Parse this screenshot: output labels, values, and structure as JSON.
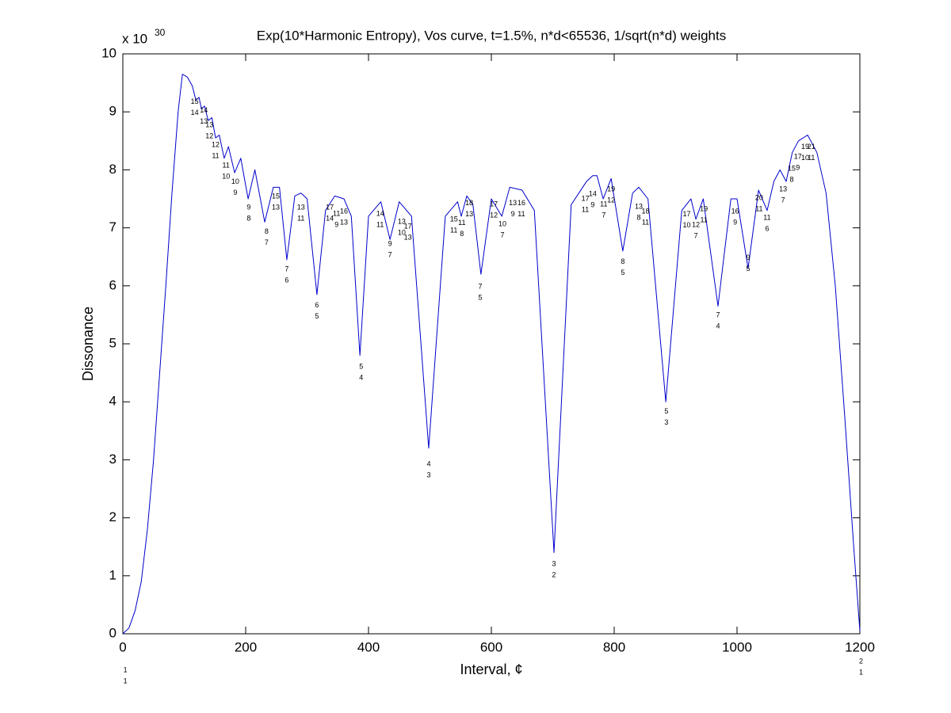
{
  "chart_data": {
    "type": "line",
    "title": "Exp(10*Harmonic Entropy), Vos curve, t=1.5%, n*d<65536, 1/sqrt(n*d) weights",
    "x_label": "Interval, ¢",
    "y_label": "Dissonance",
    "y_multiplier": {
      "base": "x 10",
      "exponent": "30"
    },
    "color": "#0000cc",
    "xlim": [
      0,
      1200
    ],
    "ylim": [
      0,
      10
    ],
    "xticks": [
      0,
      200,
      400,
      600,
      800,
      1000,
      1200
    ],
    "yticks": [
      0,
      1,
      2,
      3,
      4,
      5,
      6,
      7,
      8,
      9,
      10
    ],
    "grid": false,
    "x": [
      0,
      10,
      20,
      30,
      40,
      50,
      60,
      70,
      80,
      90,
      97,
      105,
      113,
      119,
      124,
      128,
      133,
      139,
      145,
      151,
      157,
      165,
      172,
      182,
      192,
      204,
      215,
      231,
      245,
      255,
      267,
      280,
      290,
      300,
      316,
      330,
      345,
      360,
      372,
      386,
      400,
      420,
      435,
      450,
      470,
      498,
      525,
      545,
      551,
      560,
      570,
      583,
      600,
      617,
      630,
      650,
      670,
      702,
      730,
      755,
      765,
      772,
      782,
      795,
      814,
      830,
      840,
      855,
      884,
      910,
      925,
      933,
      945,
      969,
      990,
      1000,
      1018,
      1035,
      1049,
      1060,
      1070,
      1080,
      1090,
      1100,
      1115,
      1130,
      1145,
      1160,
      1175,
      1190,
      1200
    ],
    "values": [
      0,
      0.1,
      0.4,
      0.9,
      1.8,
      3.0,
      4.5,
      6.0,
      7.6,
      9.0,
      9.65,
      9.6,
      9.45,
      9.2,
      9.25,
      9.05,
      9.1,
      8.85,
      8.9,
      8.55,
      8.6,
      8.2,
      8.4,
      7.95,
      8.2,
      7.5,
      8.0,
      7.1,
      7.7,
      7.7,
      6.45,
      7.55,
      7.6,
      7.5,
      5.85,
      7.3,
      7.55,
      7.5,
      7.2,
      4.8,
      7.2,
      7.45,
      6.8,
      7.45,
      7.2,
      3.2,
      7.2,
      7.45,
      7.2,
      7.55,
      7.4,
      6.2,
      7.5,
      7.2,
      7.7,
      7.65,
      7.3,
      1.4,
      7.4,
      7.8,
      7.9,
      7.9,
      7.5,
      7.85,
      6.6,
      7.6,
      7.7,
      7.5,
      4.0,
      7.3,
      7.5,
      7.15,
      7.5,
      5.65,
      7.5,
      7.5,
      6.3,
      7.65,
      7.3,
      7.8,
      8.0,
      7.8,
      8.3,
      8.5,
      8.6,
      8.3,
      7.6,
      6.0,
      3.8,
      1.5,
      0.05
    ],
    "annotations": [
      {
        "numerator": "15",
        "denominator": "14",
        "x": 117,
        "y": 9.17
      },
      {
        "numerator": "14",
        "denominator": "13",
        "x": 132,
        "y": 9.02
      },
      {
        "numerator": "13",
        "denominator": "12",
        "x": 141,
        "y": 8.77
      },
      {
        "numerator": "12",
        "denominator": "11",
        "x": 151,
        "y": 8.43
      },
      {
        "numerator": "11",
        "denominator": "10",
        "x": 168,
        "y": 8.07
      },
      {
        "numerator": "10",
        "denominator": "9",
        "x": 183,
        "y": 7.79
      },
      {
        "numerator": "9",
        "denominator": "8",
        "x": 205,
        "y": 7.35
      },
      {
        "numerator": "8",
        "denominator": "7",
        "x": 234,
        "y": 6.93
      },
      {
        "numerator": "15",
        "denominator": "13",
        "x": 249,
        "y": 7.54
      },
      {
        "numerator": "7",
        "denominator": "6",
        "x": 267,
        "y": 6.28
      },
      {
        "numerator": "13",
        "denominator": "11",
        "x": 290,
        "y": 7.35
      },
      {
        "numerator": "6",
        "denominator": "5",
        "x": 316,
        "y": 5.66
      },
      {
        "numerator": "17",
        "denominator": "14",
        "x": 337,
        "y": 7.35
      },
      {
        "numerator": "11",
        "denominator": "9",
        "x": 348,
        "y": 7.24
      },
      {
        "numerator": "16",
        "denominator": "13",
        "x": 360,
        "y": 7.28
      },
      {
        "numerator": "5",
        "denominator": "4",
        "x": 388,
        "y": 4.6
      },
      {
        "numerator": "14",
        "denominator": "11",
        "x": 419,
        "y": 7.24
      },
      {
        "numerator": "9",
        "denominator": "7",
        "x": 435,
        "y": 6.72
      },
      {
        "numerator": "13",
        "denominator": "10",
        "x": 454,
        "y": 7.1
      },
      {
        "numerator": "17",
        "denominator": "13",
        "x": 464,
        "y": 7.02
      },
      {
        "numerator": "4",
        "denominator": "3",
        "x": 498,
        "y": 2.92
      },
      {
        "numerator": "15",
        "denominator": "11",
        "x": 539,
        "y": 7.14
      },
      {
        "numerator": "11",
        "denominator": "8",
        "x": 552,
        "y": 7.08
      },
      {
        "numerator": "18",
        "denominator": "13",
        "x": 564,
        "y": 7.42
      },
      {
        "numerator": "7",
        "denominator": "5",
        "x": 582,
        "y": 5.98
      },
      {
        "numerator": "17",
        "denominator": "12",
        "x": 604,
        "y": 7.4
      },
      {
        "numerator": "10",
        "denominator": "7",
        "x": 618,
        "y": 7.06
      },
      {
        "numerator": "13",
        "denominator": "9",
        "x": 635,
        "y": 7.42
      },
      {
        "numerator": "16",
        "denominator": "11",
        "x": 649,
        "y": 7.42
      },
      {
        "numerator": "3",
        "denominator": "2",
        "x": 702,
        "y": 1.2
      },
      {
        "numerator": "17",
        "denominator": "11",
        "x": 753,
        "y": 7.5
      },
      {
        "numerator": "14",
        "denominator": "9",
        "x": 765,
        "y": 7.58
      },
      {
        "numerator": "11",
        "denominator": "7",
        "x": 783,
        "y": 7.4
      },
      {
        "numerator": "19",
        "denominator": "12",
        "x": 795,
        "y": 7.66
      },
      {
        "numerator": "8",
        "denominator": "5",
        "x": 814,
        "y": 6.41
      },
      {
        "numerator": "13",
        "denominator": "8",
        "x": 840,
        "y": 7.36
      },
      {
        "numerator": "18",
        "denominator": "11",
        "x": 851,
        "y": 7.28
      },
      {
        "numerator": "5",
        "denominator": "3",
        "x": 885,
        "y": 3.83
      },
      {
        "numerator": "17",
        "denominator": "10",
        "x": 918,
        "y": 7.23
      },
      {
        "numerator": "12",
        "denominator": "7",
        "x": 933,
        "y": 7.05
      },
      {
        "numerator": "19",
        "denominator": "11",
        "x": 946,
        "y": 7.32
      },
      {
        "numerator": "7",
        "denominator": "4",
        "x": 969,
        "y": 5.49
      },
      {
        "numerator": "16",
        "denominator": "9",
        "x": 997,
        "y": 7.28
      },
      {
        "numerator": "9",
        "denominator": "5",
        "x": 1018,
        "y": 6.48
      },
      {
        "numerator": "20",
        "denominator": "11",
        "x": 1036,
        "y": 7.51
      },
      {
        "numerator": "11",
        "denominator": "6",
        "x": 1049,
        "y": 7.17
      },
      {
        "numerator": "13",
        "denominator": "7",
        "x": 1075,
        "y": 7.66
      },
      {
        "numerator": "15",
        "denominator": "8",
        "x": 1089,
        "y": 8.02
      },
      {
        "numerator": "17",
        "denominator": "9",
        "x": 1099,
        "y": 8.22
      },
      {
        "numerator": "19",
        "denominator": "10",
        "x": 1111,
        "y": 8.39
      },
      {
        "numerator": "21",
        "denominator": "11",
        "x": 1121,
        "y": 8.39
      },
      {
        "numerator": "1",
        "denominator": "1",
        "x": 4,
        "y": -0.63
      },
      {
        "numerator": "2",
        "denominator": "1",
        "x": 1202,
        "y": -0.48
      }
    ]
  }
}
